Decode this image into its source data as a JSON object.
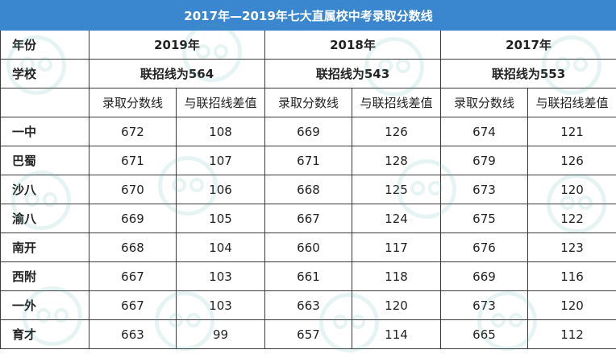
{
  "title": "2017年—2019年七大直属校中考录取分数线",
  "header": {
    "year_label": "年份",
    "school_label": "学校",
    "years": [
      "2019年",
      "2018年",
      "2017年"
    ],
    "lines": [
      "联招线为564",
      "联招线为543",
      "联招线为553"
    ],
    "col_score": "录取分数线",
    "col_diff": "与联招线差值"
  },
  "rows": [
    {
      "school": "一中",
      "s2019": "672",
      "d2019": "108",
      "s2018": "669",
      "d2018": "126",
      "s2017": "674",
      "d2017": "121"
    },
    {
      "school": "巴蜀",
      "s2019": "671",
      "d2019": "107",
      "s2018": "671",
      "d2018": "128",
      "s2017": "679",
      "d2017": "126"
    },
    {
      "school": "沙八",
      "s2019": "670",
      "d2019": "106",
      "s2018": "668",
      "d2018": "125",
      "s2017": "673",
      "d2017": "120"
    },
    {
      "school": "渝八",
      "s2019": "669",
      "d2019": "105",
      "s2018": "667",
      "d2018": "124",
      "s2017": "675",
      "d2017": "122"
    },
    {
      "school": "南开",
      "s2019": "668",
      "d2019": "104",
      "s2018": "660",
      "d2018": "117",
      "s2017": "676",
      "d2017": "123"
    },
    {
      "school": "西附",
      "s2019": "667",
      "d2019": "103",
      "s2018": "661",
      "d2018": "118",
      "s2017": "669",
      "d2017": "116"
    },
    {
      "school": "一外",
      "s2019": "667",
      "d2019": "103",
      "s2018": "663",
      "d2018": "120",
      "s2017": "673",
      "d2017": "120"
    },
    {
      "school": "育才",
      "s2019": "663",
      "d2019": "99",
      "s2018": "657",
      "d2018": "114",
      "s2017": "665",
      "d2017": "112"
    }
  ]
}
